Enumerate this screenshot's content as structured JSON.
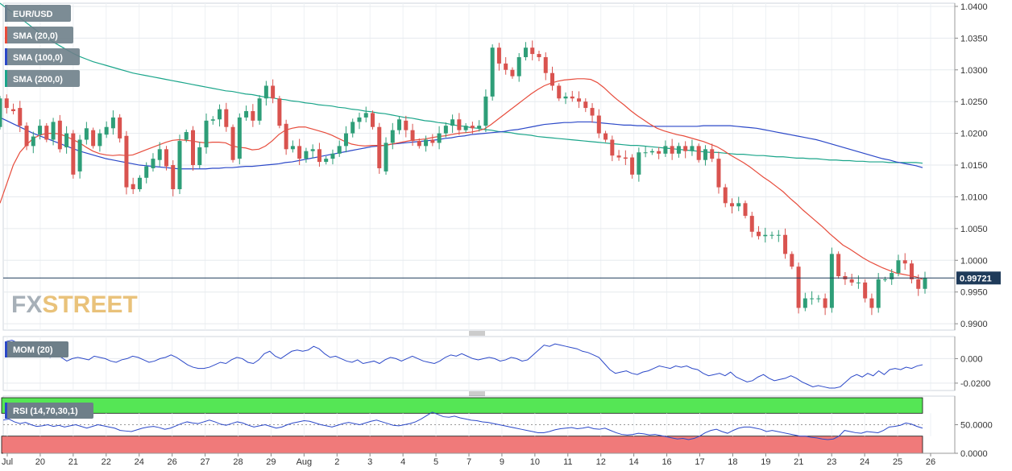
{
  "chart_data": [
    {
      "type": "candlestick",
      "title": "EUR/USD",
      "indicators": [
        {
          "name": "SMA (20,0)",
          "color": "#e74c3c"
        },
        {
          "name": "SMA (100,0)",
          "color": "#2b48c8"
        },
        {
          "name": "SMA (200,0)",
          "color": "#1aa58a"
        }
      ],
      "x_tick_labels": [
        "Jul",
        "20",
        "21",
        "22",
        "24",
        "26",
        "27",
        "28",
        "29",
        "Aug",
        "2",
        "3",
        "4",
        "5",
        "7",
        "9",
        "10",
        "11",
        "12",
        "14",
        "16",
        "17",
        "18",
        "19",
        "21",
        "23",
        "24",
        "25",
        "26"
      ],
      "y_tick_labels": [
        "1.0400",
        "1.0350",
        "1.0300",
        "1.0250",
        "1.0200",
        "1.0150",
        "1.0100",
        "1.0050",
        "1.0000",
        "0.9950",
        "0.9900"
      ],
      "ylim": [
        0.989,
        1.0405
      ],
      "last_price": "0.99721",
      "last_price_value": 0.99721,
      "colors": {
        "up": "#2e9e78",
        "down": "#d9534f",
        "price_line": "#1f3b5a",
        "price_tag": "#1f3b5a"
      },
      "watermark": {
        "part1": "FX",
        "part2": "STREET"
      },
      "candles_open": [
        1.021,
        1.0255,
        1.0238,
        1.024,
        1.0212,
        1.018,
        1.0198,
        1.0212,
        1.019,
        1.022,
        1.0178,
        1.02,
        1.014,
        1.019,
        1.0205,
        1.018,
        1.0198,
        1.0208,
        1.0225,
        1.0196,
        1.012,
        1.0112,
        1.013,
        1.0145,
        1.0158,
        1.0175,
        1.015,
        1.0112,
        1.019,
        1.0205,
        1.015,
        1.0178,
        1.022,
        1.0222,
        1.0238,
        1.021,
        1.016,
        1.0225,
        1.0235,
        1.022,
        1.0255,
        1.0275,
        1.0255,
        1.0215,
        1.0175,
        1.018,
        1.016,
        1.0172,
        1.0175,
        1.0155,
        1.016,
        1.0168,
        1.018,
        1.02,
        1.0218,
        1.0225,
        1.0232,
        1.021,
        1.014,
        1.0185,
        1.0205,
        1.022,
        1.0205,
        1.0188,
        1.018,
        1.019,
        1.0185,
        1.02,
        1.0212,
        1.0222,
        1.0205,
        1.0212,
        1.0208,
        1.0212,
        1.0258,
        1.0335,
        1.031,
        1.03,
        1.029,
        1.032,
        1.0335,
        1.0325,
        1.032,
        1.0295,
        1.0275,
        1.0255,
        1.0258,
        1.0255,
        1.025,
        1.024,
        1.0228,
        1.02,
        1.019,
        1.0165,
        1.0162,
        1.0162,
        1.0135,
        1.017,
        1.017,
        1.0172,
        1.0168,
        1.018,
        1.0168,
        1.018,
        1.0172,
        1.018,
        1.0158,
        1.0175,
        1.016,
        1.0115,
        1.009,
        1.0085,
        1.009,
        1.007,
        1.0045,
        1.0038,
        1.004,
        1.004,
        1.004,
        1.001,
        0.999,
        0.9925,
        0.994,
        0.994,
        0.994,
        0.9925,
        1.001,
        0.9975,
        0.997,
        0.9965,
        0.9965,
        0.994,
        0.9925,
        0.997,
        0.997,
        0.998,
        1.0,
        0.9995,
        0.997,
        0.9955
      ],
      "candles_close": [
        1.0255,
        1.024,
        1.0235,
        1.0212,
        1.018,
        1.0195,
        1.0212,
        1.019,
        1.0218,
        1.0175,
        1.02,
        1.0135,
        1.019,
        1.0208,
        1.018,
        1.02,
        1.021,
        1.0225,
        1.0192,
        1.0115,
        1.0112,
        1.013,
        1.0148,
        1.016,
        1.0175,
        1.0148,
        1.0112,
        1.0188,
        1.0202,
        1.015,
        1.0178,
        1.022,
        1.0222,
        1.0238,
        1.021,
        1.0158,
        1.0225,
        1.0235,
        1.022,
        1.0255,
        1.0275,
        1.0255,
        1.0212,
        1.0175,
        1.018,
        1.016,
        1.0172,
        1.0175,
        1.0155,
        1.016,
        1.0168,
        1.018,
        1.02,
        1.0218,
        1.0225,
        1.0232,
        1.021,
        1.0145,
        1.0185,
        1.0205,
        1.0222,
        1.0205,
        1.0188,
        1.018,
        1.019,
        1.0185,
        1.02,
        1.0212,
        1.0222,
        1.0205,
        1.0212,
        1.0208,
        1.0212,
        1.0258,
        1.0335,
        1.031,
        1.03,
        1.029,
        1.032,
        1.0335,
        1.0325,
        1.032,
        1.0295,
        1.0275,
        1.0255,
        1.0258,
        1.0255,
        1.025,
        1.024,
        1.0228,
        1.02,
        1.019,
        1.0165,
        1.0162,
        1.016,
        1.0135,
        1.017,
        1.017,
        1.0172,
        1.0168,
        1.018,
        1.0168,
        1.018,
        1.0172,
        1.018,
        1.0158,
        1.0175,
        1.016,
        1.0115,
        1.009,
        1.0085,
        1.009,
        1.007,
        1.0045,
        1.0038,
        1.004,
        1.004,
        1.004,
        1.001,
        0.999,
        0.9925,
        0.994,
        0.994,
        0.994,
        0.9925,
        1.001,
        0.9975,
        0.997,
        0.9965,
        0.9965,
        0.994,
        0.9925,
        0.997,
        0.997,
        0.998,
        1.0,
        0.9995,
        0.997,
        0.9955,
        0.9972
      ],
      "sma20": [
        1.009,
        1.012,
        1.015,
        1.017,
        1.0182,
        1.0192,
        1.0197,
        1.02,
        1.02,
        1.0199,
        1.0195,
        1.019,
        1.0185,
        1.0178,
        1.0172,
        1.0168,
        1.0166,
        1.0165,
        1.0166,
        1.0165,
        1.0166,
        1.017,
        1.0174,
        1.0178,
        1.0182,
        1.0186,
        1.0189,
        1.019,
        1.0189,
        1.0188,
        1.0186,
        1.0185,
        1.0186,
        1.0186,
        1.0185,
        1.018,
        1.0178,
        1.0177,
        1.0174,
        1.0175,
        1.018,
        1.0188,
        1.0198,
        1.0205,
        1.0208,
        1.021,
        1.021,
        1.0207,
        1.0204,
        1.0201,
        1.0197,
        1.0192,
        1.0187,
        1.0183,
        1.0181,
        1.018,
        1.0181,
        1.0181,
        1.0181,
        1.0183,
        1.0185,
        1.0187,
        1.0189,
        1.019,
        1.0191,
        1.0193,
        1.0195,
        1.0196,
        1.0198,
        1.02,
        1.0201,
        1.0202,
        1.0204,
        1.0207,
        1.0214,
        1.0222,
        1.023,
        1.0238,
        1.0246,
        1.0254,
        1.0262,
        1.0269,
        1.0275,
        1.0279,
        1.0282,
        1.0284,
        1.0285,
        1.0286,
        1.0286,
        1.0285,
        1.028,
        1.0272,
        1.0262,
        1.0253,
        1.0245,
        1.0236,
        1.0228,
        1.0221,
        1.0214,
        1.0208,
        1.0204,
        1.0201,
        1.0198,
        1.0196,
        1.0193,
        1.019,
        1.0187,
        1.0183,
        1.0179,
        1.0173,
        1.0166,
        1.016,
        1.0154,
        1.0147,
        1.0139,
        1.0131,
        1.0124,
        1.0116,
        1.0108,
        1.0098,
        1.0089,
        1.0079,
        1.007,
        1.0061,
        1.0052,
        1.0042,
        1.0033,
        1.0024,
        1.0018,
        1.0011,
        1.0004,
        0.9998,
        0.9993,
        0.9988,
        0.9984,
        0.998,
        0.9978,
        0.9976,
        0.9974,
        0.997
      ],
      "sma100": [
        1.0225,
        1.022,
        1.0215,
        1.021,
        1.0205,
        1.02,
        1.0196,
        1.0192,
        1.0188,
        1.0184,
        1.018,
        1.0176,
        1.0172,
        1.0169,
        1.0166,
        1.0163,
        1.016,
        1.0158,
        1.0156,
        1.0154,
        1.0152,
        1.015,
        1.0149,
        1.0148,
        1.0147,
        1.0146,
        1.0145,
        1.0144,
        1.0144,
        1.0144,
        1.0144,
        1.0144,
        1.0145,
        1.0145,
        1.0146,
        1.0146,
        1.0147,
        1.0148,
        1.0148,
        1.0149,
        1.015,
        1.0151,
        1.0152,
        1.0154,
        1.0155,
        1.0157,
        1.0159,
        1.0161,
        1.0163,
        1.0165,
        1.0167,
        1.0169,
        1.0171,
        1.0173,
        1.0175,
        1.0177,
        1.0179,
        1.018,
        1.0181,
        1.0183,
        1.0184,
        1.0185,
        1.0186,
        1.0187,
        1.0188,
        1.0189,
        1.019,
        1.0192,
        1.0193,
        1.0195,
        1.0196,
        1.0198,
        1.0199,
        1.02,
        1.0201,
        1.0202,
        1.0203,
        1.0205,
        1.0206,
        1.0208,
        1.021,
        1.0212,
        1.0214,
        1.0215,
        1.0216,
        1.0217,
        1.0217,
        1.0218,
        1.0218,
        1.0218,
        1.0217,
        1.0216,
        1.0215,
        1.0214,
        1.0213,
        1.0213,
        1.0212,
        1.0212,
        1.0211,
        1.0211,
        1.0211,
        1.0211,
        1.0211,
        1.0211,
        1.0211,
        1.0211,
        1.0212,
        1.0212,
        1.0212,
        1.0212,
        1.0212,
        1.0211,
        1.021,
        1.0209,
        1.0208,
        1.0206,
        1.0204,
        1.0202,
        1.02,
        1.0198,
        1.0196,
        1.0194,
        1.0192,
        1.019,
        1.0187,
        1.0184,
        1.0181,
        1.0178,
        1.0175,
        1.0172,
        1.0169,
        1.0166,
        1.0163,
        1.016,
        1.0158,
        1.0155,
        1.0153,
        1.0151,
        1.0149,
        1.0146
      ],
      "sma200": [
        1.0405,
        1.0397,
        1.039,
        1.0382,
        1.0374,
        1.0366,
        1.0358,
        1.0351,
        1.0344,
        1.0338,
        1.0332,
        1.0326,
        1.0321,
        1.0317,
        1.0313,
        1.031,
        1.0307,
        1.0304,
        1.0301,
        1.0298,
        1.0295,
        1.0293,
        1.0291,
        1.0289,
        1.0287,
        1.0285,
        1.0283,
        1.0281,
        1.0279,
        1.0277,
        1.0275,
        1.0273,
        1.0271,
        1.0269,
        1.0267,
        1.0266,
        1.0264,
        1.0262,
        1.0261,
        1.0259,
        1.0257,
        1.0256,
        1.0254,
        1.0253,
        1.0251,
        1.025,
        1.0248,
        1.0247,
        1.0245,
        1.0244,
        1.0243,
        1.0241,
        1.024,
        1.0238,
        1.0237,
        1.0235,
        1.0234,
        1.0232,
        1.0231,
        1.0229,
        1.0227,
        1.0225,
        1.0224,
        1.0222,
        1.022,
        1.0219,
        1.0217,
        1.0216,
        1.0214,
        1.0212,
        1.0211,
        1.0209,
        1.0208,
        1.0206,
        1.0205,
        1.0203,
        1.0202,
        1.0201,
        1.0199,
        1.0198,
        1.0197,
        1.0195,
        1.0194,
        1.0193,
        1.0192,
        1.0191,
        1.019,
        1.0189,
        1.0188,
        1.0187,
        1.0186,
        1.0185,
        1.0184,
        1.0183,
        1.0182,
        1.0181,
        1.0181,
        1.018,
        1.0179,
        1.0178,
        1.0177,
        1.0176,
        1.0175,
        1.0174,
        1.0173,
        1.0172,
        1.0171,
        1.017,
        1.017,
        1.0169,
        1.0168,
        1.0167,
        1.0167,
        1.0166,
        1.0165,
        1.0165,
        1.0164,
        1.0163,
        1.0163,
        1.0162,
        1.0161,
        1.0161,
        1.016,
        1.016,
        1.0159,
        1.0158,
        1.0158,
        1.0157,
        1.0157,
        1.0156,
        1.0156,
        1.0155,
        1.0155,
        1.0155,
        1.0154,
        1.0154,
        1.0154,
        1.0154,
        1.0154,
        1.0153
      ]
    },
    {
      "type": "line",
      "title": "MOM (20)",
      "y_tick_labels": [
        "0.000",
        "-0.0200"
      ],
      "ylim": [
        -0.026,
        0.018
      ],
      "color": "#2b48c8",
      "values": [
        0.014,
        0.015,
        0.013,
        0.011,
        0.008,
        0.006,
        0.004,
        0.002,
        0.001,
        0.003,
        0.001,
        -0.002,
        0.0,
        0.001,
        0.0,
        -0.001,
        0.002,
        0.001,
        0.0,
        -0.002,
        -0.003,
        -0.001,
        0.0,
        0.002,
        0.001,
        -0.001,
        -0.003,
        -0.002,
        0.0,
        0.001,
        0.003,
        0.001,
        -0.002,
        -0.005,
        -0.007,
        -0.008,
        -0.008,
        -0.007,
        -0.005,
        -0.003,
        -0.004,
        -0.001,
        0.001,
        0.0,
        -0.003,
        -0.004,
        -0.001,
        0.004,
        0.006,
        0.002,
        0.0,
        0.003,
        0.006,
        0.007,
        0.006,
        0.007,
        0.01,
        0.008,
        0.004,
        0.001,
        0.002,
        0.0,
        -0.002,
        -0.003,
        -0.001,
        -0.004,
        -0.003,
        -0.002,
        -0.004,
        -0.001,
        0.001,
        0.0,
        -0.002,
        0.0,
        0.002,
        0.0,
        -0.002,
        -0.003,
        -0.004,
        -0.002,
        0.001,
        0.003,
        0.002,
        0.004,
        0.002,
        0.0,
        -0.001,
        0.0,
        0.001,
        0.0,
        -0.002,
        -0.001,
        0.001,
        0.0,
        -0.002,
        -0.001,
        0.003,
        0.007,
        0.011,
        0.01,
        0.012,
        0.011,
        0.01,
        0.009,
        0.008,
        0.006,
        0.005,
        0.003,
        0.001,
        -0.004,
        -0.009,
        -0.012,
        -0.011,
        -0.01,
        -0.012,
        -0.013,
        -0.011,
        -0.01,
        -0.008,
        -0.006,
        -0.007,
        -0.008,
        -0.006,
        -0.007,
        -0.006,
        -0.008,
        -0.009,
        -0.012,
        -0.014,
        -0.013,
        -0.012,
        -0.014,
        -0.011,
        -0.015,
        -0.017,
        -0.019,
        -0.018,
        -0.015,
        -0.013,
        -0.016,
        -0.018,
        -0.017,
        -0.016,
        -0.014,
        -0.016,
        -0.019,
        -0.021,
        -0.023,
        -0.022,
        -0.023,
        -0.024,
        -0.024,
        -0.023,
        -0.019,
        -0.015,
        -0.013,
        -0.015,
        -0.012,
        -0.014,
        -0.01,
        -0.013,
        -0.009,
        -0.008,
        -0.009,
        -0.007,
        -0.008,
        -0.006,
        -0.005
      ]
    },
    {
      "type": "line",
      "title": "RSI (14,70,30,1)",
      "y_tick_labels": [
        "50.0000",
        "0.0000"
      ],
      "ylim": [
        0,
        100
      ],
      "overbought": 70,
      "oversold": 30,
      "color": "#2b48c8",
      "zone_colors": {
        "overbought": "#55e655",
        "oversold": "#f07a7a"
      },
      "values": [
        58,
        60,
        55,
        52,
        54,
        50,
        47,
        48,
        50,
        47,
        49,
        46,
        48,
        50,
        47,
        44,
        47,
        50,
        48,
        46,
        44,
        40,
        39,
        38,
        41,
        44,
        46,
        47,
        45,
        42,
        44,
        48,
        52,
        55,
        53,
        52,
        55,
        58,
        55,
        51,
        49,
        52,
        55,
        53,
        49,
        46,
        48,
        50,
        47,
        44,
        46,
        50,
        53,
        55,
        57,
        56,
        53,
        50,
        48,
        46,
        49,
        52,
        54,
        52,
        50,
        53,
        56,
        58,
        55,
        52,
        49,
        48,
        50,
        52,
        55,
        60,
        66,
        72,
        68,
        64,
        63,
        65,
        62,
        60,
        58,
        57,
        55,
        54,
        52,
        50,
        48,
        46,
        44,
        42,
        40,
        38,
        36,
        36,
        38,
        41,
        43,
        44,
        45,
        43,
        44,
        46,
        43,
        42,
        44,
        40,
        36,
        33,
        32,
        33,
        35,
        34,
        32,
        33,
        31,
        29,
        27,
        25,
        26,
        24,
        26,
        30,
        36,
        40,
        42,
        38,
        35,
        40,
        44,
        46,
        46,
        44,
        42,
        38,
        40,
        38,
        36,
        34,
        32,
        30,
        30,
        28,
        27,
        25,
        24,
        25,
        30,
        40,
        38,
        36,
        35,
        38,
        37,
        36,
        40,
        46,
        47,
        49,
        53,
        51,
        47,
        44
      ]
    }
  ]
}
